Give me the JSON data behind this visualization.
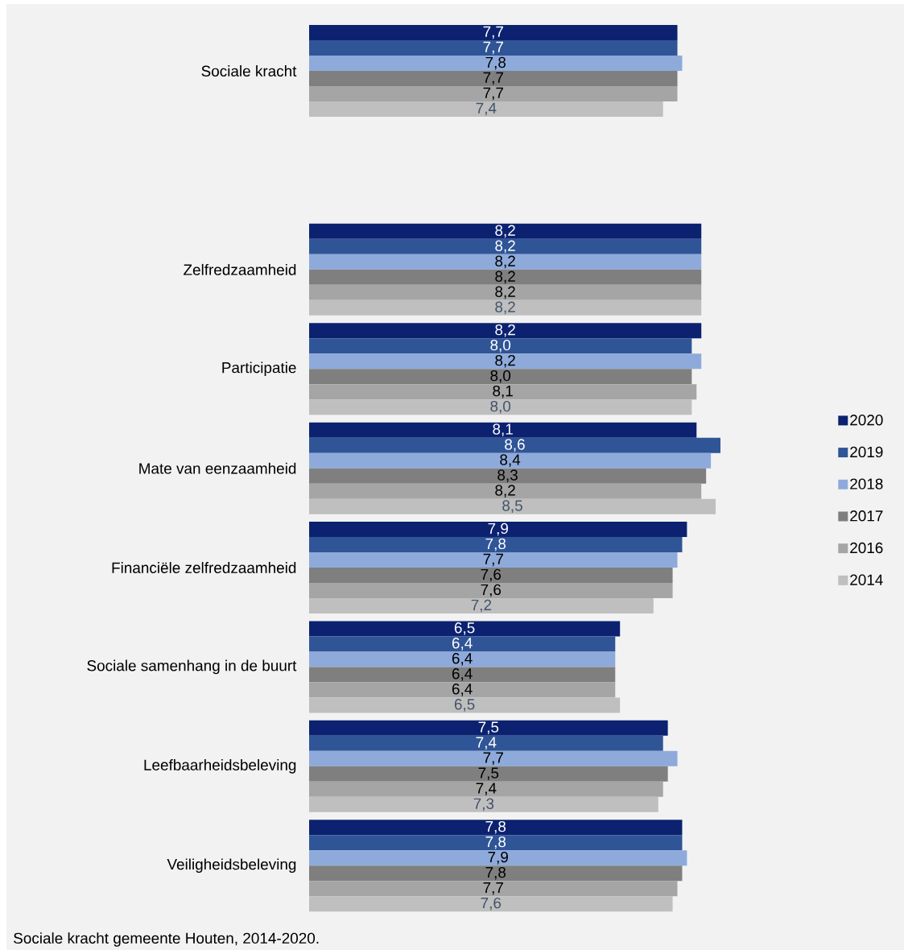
{
  "chart_data": {
    "type": "bar",
    "orientation": "horizontal",
    "categories": [
      "Sociale kracht",
      null,
      "Zelfredzaamheid",
      "Participatie",
      "Mate van eenzaamheid",
      "Financiële zelfredzaamheid",
      "Sociale samenhang in de buurt",
      "Leefbaarheidsbeleving",
      "Veiligheidsbeleving"
    ],
    "series": [
      {
        "name": "2020",
        "color": "#0c2270",
        "values": [
          7.7,
          null,
          8.2,
          8.2,
          8.1,
          7.9,
          6.5,
          7.5,
          7.8
        ],
        "value_labels": [
          "7,7",
          null,
          "8,2",
          "8,2",
          "8,1",
          "7,9",
          "6,5",
          "7,5",
          "7,8"
        ]
      },
      {
        "name": "2019",
        "color": "#2f5597",
        "values": [
          7.7,
          null,
          8.2,
          8.0,
          8.6,
          7.8,
          6.4,
          7.4,
          7.8
        ],
        "value_labels": [
          "7,7",
          null,
          "8,2",
          "8,0",
          "8,6",
          "7,8",
          "6,4",
          "7,4",
          "7,8"
        ]
      },
      {
        "name": "2018",
        "color": "#8eaadb",
        "values": [
          7.8,
          null,
          8.2,
          8.2,
          8.4,
          7.7,
          6.4,
          7.7,
          7.9
        ],
        "value_labels": [
          "7,8",
          null,
          "8,2",
          "8,2",
          "8,4",
          "7,7",
          "6,4",
          "7,7",
          "7,9"
        ]
      },
      {
        "name": "2017",
        "color": "#7f7f7f",
        "values": [
          7.7,
          null,
          8.2,
          8.0,
          8.3,
          7.6,
          6.4,
          7.5,
          7.8
        ],
        "value_labels": [
          "7,7",
          null,
          "8,2",
          "8,0",
          "8,3",
          "7,6",
          "6,4",
          "7,5",
          "7,8"
        ]
      },
      {
        "name": "2016",
        "color": "#a5a5a5",
        "values": [
          7.7,
          null,
          8.2,
          8.1,
          8.2,
          7.6,
          6.4,
          7.4,
          7.7
        ],
        "value_labels": [
          "7,7",
          null,
          "8,2",
          "8,1",
          "8,2",
          "7,6",
          "6,4",
          "7,4",
          "7,7"
        ]
      },
      {
        "name": "2014",
        "color": "#bfbfbf",
        "values": [
          7.4,
          null,
          8.2,
          8.0,
          8.5,
          7.2,
          6.5,
          7.3,
          7.6
        ],
        "value_labels": [
          "7,4",
          null,
          "8,2",
          "8,0",
          "8,5",
          "7,2",
          "6,5",
          "7,3",
          "7,6"
        ]
      }
    ],
    "legend": "right",
    "tick_labels": "y",
    "annotations": [
      "Sociale kracht gemeente Houten, 2014-2020."
    ]
  }
}
